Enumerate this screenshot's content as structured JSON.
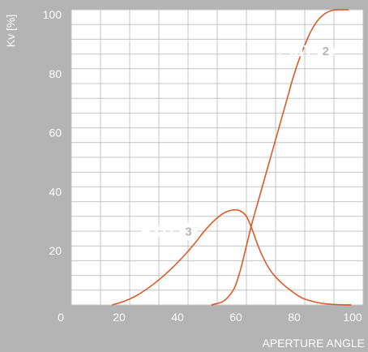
{
  "chart_data": {
    "type": "line",
    "title": "",
    "xlabel": "APERTURE ANGLE",
    "ylabel": "Kv [%]",
    "xlim": [
      0,
      100
    ],
    "ylim": [
      0,
      100
    ],
    "xticks": [
      0,
      20,
      40,
      60,
      80,
      100
    ],
    "yticks": [
      20,
      40,
      60,
      80,
      100
    ],
    "grid": true,
    "series": [
      {
        "name": "EXIT 2",
        "badge": "2",
        "label_x": 83,
        "label_y": 84,
        "color": "#d85a28",
        "x": [
          48,
          50,
          52,
          54,
          56,
          58,
          60,
          62,
          64,
          66,
          68,
          70,
          72,
          74,
          76,
          78,
          80,
          82,
          84,
          86,
          88,
          90,
          92,
          94,
          95
        ],
        "y": [
          0,
          0.5,
          1.2,
          3,
          6,
          12,
          20,
          28,
          35,
          42,
          49,
          56,
          63,
          70,
          77,
          83,
          88,
          92.5,
          95.8,
          98,
          99.3,
          99.9,
          100,
          100,
          100
        ]
      },
      {
        "name": "EXIT 3",
        "badge": "3",
        "label_x": 36,
        "label_y": 23,
        "color": "#d85a28",
        "x": [
          14,
          18,
          22,
          26,
          30,
          34,
          38,
          42,
          46,
          50,
          53,
          56,
          58,
          60,
          62,
          64,
          66,
          68,
          70,
          72,
          74,
          76,
          78,
          80,
          84,
          88,
          92,
          96
        ],
        "y": [
          0,
          1.2,
          3,
          5.5,
          8.5,
          12,
          16,
          20.5,
          25.5,
          29.5,
          31.5,
          32.2,
          31.8,
          30,
          25.5,
          20,
          15.5,
          12,
          9.5,
          7.5,
          5.8,
          4.3,
          3,
          2,
          0.9,
          0.3,
          0.1,
          0
        ]
      }
    ]
  }
}
